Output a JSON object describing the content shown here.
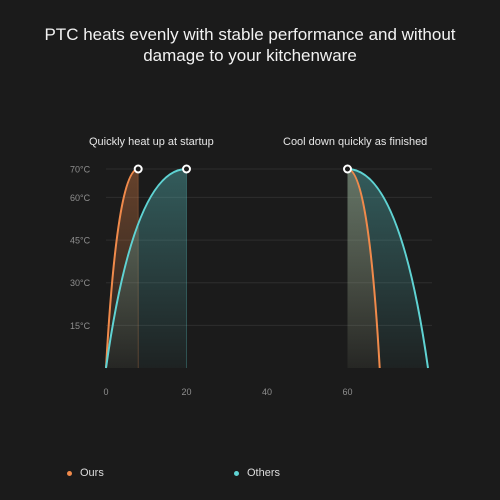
{
  "title": {
    "line1": "PTC heats evenly with stable performance and without",
    "line2": "damage to your kitchenware"
  },
  "annotations": {
    "heat": "Quickly heat up at startup",
    "cool": "Cool down quickly as finished"
  },
  "colors": {
    "background": "#1b1b1b",
    "ours": "#f08a4b",
    "others": "#5fd3d3",
    "grid": "#2e2e2e",
    "text": "#8f8f8f"
  },
  "chart_data": {
    "type": "line",
    "xlim": [
      0,
      80
    ],
    "ylim": [
      0,
      70
    ],
    "x_ticks": [
      {
        "value": 0,
        "label": "0"
      },
      {
        "value": 20,
        "label": "20"
      },
      {
        "value": 40,
        "label": "40"
      },
      {
        "value": 60,
        "label": "60"
      }
    ],
    "y_ticks": [
      {
        "value": 15,
        "label": "15°C"
      },
      {
        "value": 30,
        "label": "30°C"
      },
      {
        "value": 45,
        "label": "45°C"
      },
      {
        "value": 60,
        "label": "60°C"
      },
      {
        "value": 70,
        "label": "70°C"
      }
    ],
    "grid": true,
    "legend_position": "bottom-left",
    "series": [
      {
        "name": "Ours",
        "color": "#f08a4b",
        "heat": {
          "from": [
            0,
            0
          ],
          "to": [
            8,
            70
          ]
        },
        "cool": {
          "from": [
            60,
            70
          ],
          "to": [
            68,
            0
          ]
        }
      },
      {
        "name": "Others",
        "color": "#5fd3d3",
        "heat": {
          "from": [
            0,
            0
          ],
          "to": [
            20,
            70
          ]
        },
        "cool": {
          "from": [
            60,
            70
          ],
          "to": [
            80,
            0
          ]
        }
      }
    ]
  }
}
